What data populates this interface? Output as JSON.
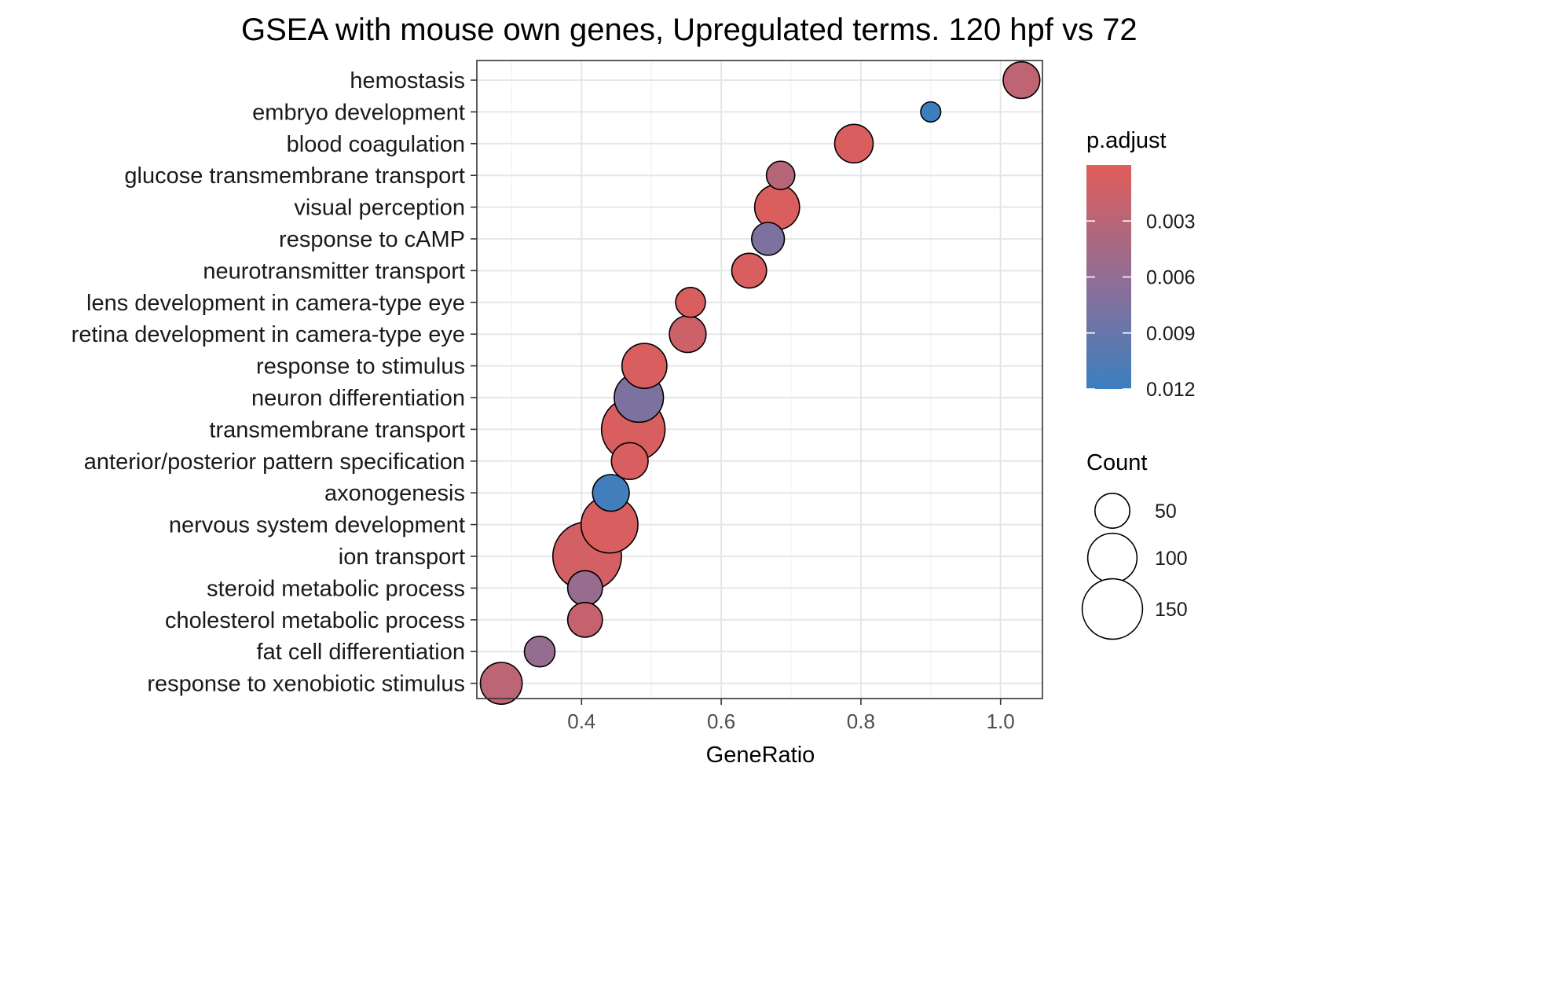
{
  "chart_data": {
    "type": "scatter",
    "title": "GSEA with mouse own genes, Upregulated terms. 120 hpf vs 72",
    "xlabel": "GeneRatio",
    "ylabel": "",
    "xlim": [
      0.25,
      1.06
    ],
    "x_ticks": [
      0.4,
      0.6,
      0.8,
      1.0
    ],
    "x_tick_labels": [
      "0.4",
      "0.6",
      "0.8",
      "1.0"
    ],
    "grid": true,
    "categories": [
      "hemostasis",
      "embryo development",
      "blood coagulation",
      "glucose transmembrane transport",
      "visual perception",
      "response to cAMP",
      "neurotransmitter transport",
      "lens development in camera-type eye",
      "retina development in camera-type eye",
      "response to stimulus",
      "neuron differentiation",
      "transmembrane transport",
      "anterior/posterior pattern specification",
      "axonogenesis",
      "nervous system development",
      "ion transport",
      "steroid metabolic process",
      "cholesterol metabolic process",
      "fat cell differentiation",
      "response to xenobiotic stimulus"
    ],
    "points": [
      {
        "term": "hemostasis",
        "gene_ratio": 1.03,
        "count": 50,
        "p_adjust": 0.0025
      },
      {
        "term": "embryo development",
        "gene_ratio": 0.9,
        "count": 15,
        "p_adjust": 0.012
      },
      {
        "term": "blood coagulation",
        "gene_ratio": 0.79,
        "count": 55,
        "p_adjust": 0.0005
      },
      {
        "term": "glucose transmembrane transport",
        "gene_ratio": 0.685,
        "count": 30,
        "p_adjust": 0.0032
      },
      {
        "term": "visual perception",
        "gene_ratio": 0.68,
        "count": 75,
        "p_adjust": 0.0004
      },
      {
        "term": "response to cAMP",
        "gene_ratio": 0.667,
        "count": 40,
        "p_adjust": 0.0075
      },
      {
        "term": "neurotransmitter transport",
        "gene_ratio": 0.64,
        "count": 45,
        "p_adjust": 0.0005
      },
      {
        "term": "lens development in camera-type eye",
        "gene_ratio": 0.556,
        "count": 33,
        "p_adjust": 0.0005
      },
      {
        "term": "retina development in camera-type eye",
        "gene_ratio": 0.552,
        "count": 50,
        "p_adjust": 0.0015
      },
      {
        "term": "response to stimulus",
        "gene_ratio": 0.49,
        "count": 75,
        "p_adjust": 0.0005
      },
      {
        "term": "neuron differentiation",
        "gene_ratio": 0.482,
        "count": 90,
        "p_adjust": 0.0075
      },
      {
        "term": "transmembrane transport",
        "gene_ratio": 0.474,
        "count": 150,
        "p_adjust": 0.0005
      },
      {
        "term": "anterior/posterior pattern specification",
        "gene_ratio": 0.469,
        "count": 50,
        "p_adjust": 0.0005
      },
      {
        "term": "axonogenesis",
        "gene_ratio": 0.442,
        "count": 50,
        "p_adjust": 0.0115
      },
      {
        "term": "nervous system development",
        "gene_ratio": 0.44,
        "count": 120,
        "p_adjust": 0.0005
      },
      {
        "term": "ion transport",
        "gene_ratio": 0.408,
        "count": 175,
        "p_adjust": 0.001
      },
      {
        "term": "steroid metabolic process",
        "gene_ratio": 0.405,
        "count": 45,
        "p_adjust": 0.0055
      },
      {
        "term": "cholesterol metabolic process",
        "gene_ratio": 0.405,
        "count": 45,
        "p_adjust": 0.002
      },
      {
        "term": "fat cell differentiation",
        "gene_ratio": 0.34,
        "count": 35,
        "p_adjust": 0.0058
      },
      {
        "term": "response to xenobiotic stimulus",
        "gene_ratio": 0.285,
        "count": 65,
        "p_adjust": 0.0028
      }
    ],
    "color_legend": {
      "title": "p.adjust",
      "ticks": [
        0.003,
        0.006,
        0.009,
        0.012
      ],
      "tick_labels": [
        "0.003",
        "0.006",
        "0.009",
        "0.012"
      ],
      "range": [
        0.0,
        0.012
      ],
      "low_color": "#e05d5a",
      "high_color": "#3b7fbf"
    },
    "size_legend": {
      "title": "Count",
      "values": [
        50,
        100,
        150
      ],
      "labels": [
        "50",
        "100",
        "150"
      ]
    },
    "legend_position": "right"
  }
}
